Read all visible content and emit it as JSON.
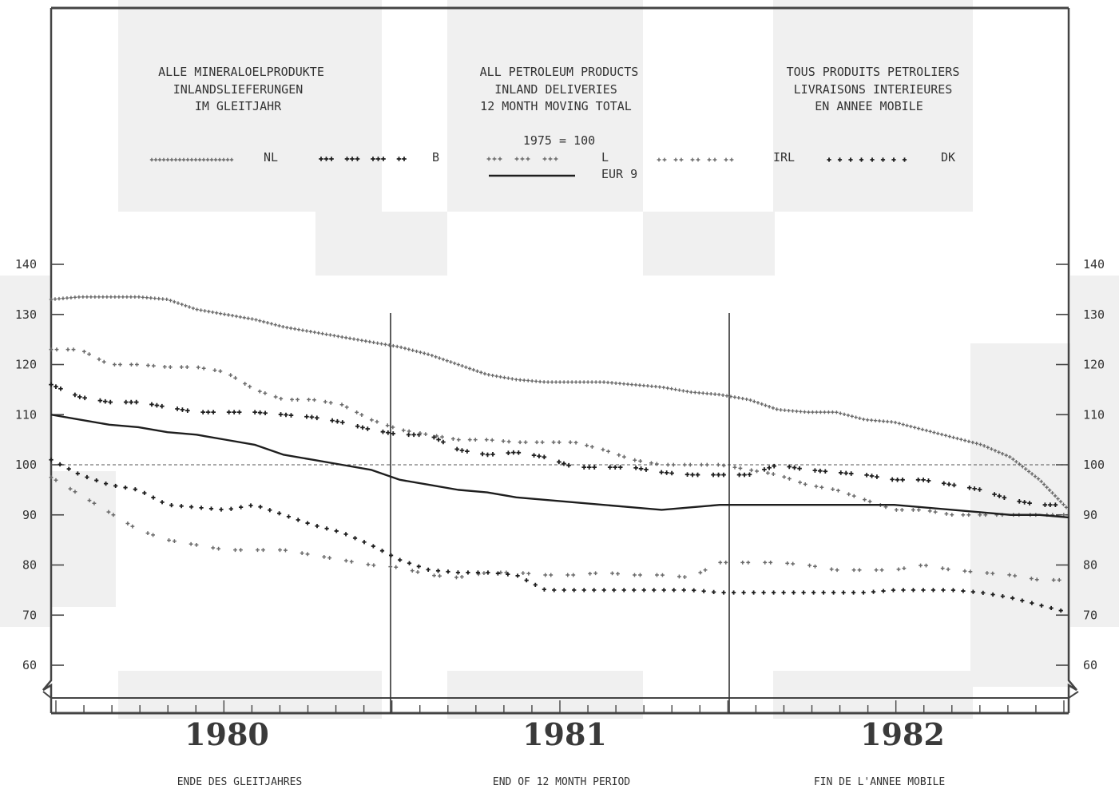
{
  "chart_data": {
    "type": "line",
    "title_de": [
      "ALLE MINERALOELPRODUKTE",
      "INLANDSLIEFERUNGEN",
      "IM GLEITJAHR"
    ],
    "title_en": [
      "ALL PETROLEUM PRODUCTS",
      "INLAND DELIVERIES",
      "12 MONTH MOVING TOTAL"
    ],
    "title_fr": [
      "TOUS PRODUITS PETROLIERS",
      "LIVRAISONS INTERIEURES",
      "EN ANNEE MOBILE"
    ],
    "base_note": "1975 = 100",
    "xlabel_de": "ENDE DES GLEITJAHRES",
    "xlabel_en": "END OF 12 MONTH PERIOD",
    "xlabel_fr": "FIN DE L'ANNEE MOBILE",
    "year_labels": [
      "1980",
      "1981",
      "1982"
    ],
    "x_range": [
      "1980-01",
      "1982-12"
    ],
    "ylim": [
      60,
      140
    ],
    "yticks": [
      60,
      70,
      80,
      90,
      100,
      110,
      120,
      130,
      140
    ],
    "yticks_labels": [
      "60",
      "70",
      "80",
      "90",
      "100",
      "110",
      "120",
      "130",
      "140"
    ],
    "reference_line": 100,
    "x_monthly": [
      "1980-01",
      "1980-02",
      "1980-03",
      "1980-04",
      "1980-05",
      "1980-06",
      "1980-07",
      "1980-08",
      "1980-09",
      "1980-10",
      "1980-11",
      "1980-12",
      "1981-01",
      "1981-02",
      "1981-03",
      "1981-04",
      "1981-05",
      "1981-06",
      "1981-07",
      "1981-08",
      "1981-09",
      "1981-10",
      "1981-11",
      "1981-12",
      "1982-01",
      "1982-02",
      "1982-03",
      "1982-04",
      "1982-05",
      "1982-06",
      "1982-07",
      "1982-08",
      "1982-09",
      "1982-10",
      "1982-11",
      "1982-12"
    ],
    "series": [
      {
        "name": "NL",
        "style": "dense-plus",
        "values": [
          133,
          133.5,
          133.5,
          133.5,
          133,
          131,
          130,
          129,
          127.5,
          126.5,
          125.5,
          124.5,
          123.5,
          122,
          120,
          118,
          117,
          116.5,
          116.5,
          116.5,
          116,
          115.5,
          114.5,
          114,
          113,
          111,
          110.5,
          110.5,
          109,
          108.5,
          107,
          105.5,
          104,
          101.5,
          97,
          91
        ]
      },
      {
        "name": "B",
        "style": "triple-plus",
        "values": [
          116,
          113.5,
          112.5,
          112.5,
          111.5,
          110.5,
          110.5,
          110.5,
          110,
          109.5,
          108.5,
          107,
          106,
          106,
          103,
          102,
          102.5,
          101.5,
          99.5,
          99.5,
          99.5,
          98.5,
          98,
          98,
          98,
          100,
          99,
          98.5,
          98,
          97,
          97,
          96,
          95,
          93,
          92,
          92
        ]
      },
      {
        "name": "L",
        "style": "dash-plus",
        "values": [
          123,
          123,
          120,
          120,
          119.5,
          119.5,
          118.5,
          115,
          113,
          113,
          112,
          109,
          107,
          106,
          105,
          105,
          104.5,
          104.5,
          104.5,
          103,
          101,
          100,
          100,
          100,
          99,
          98,
          96,
          95,
          93,
          91,
          91,
          90,
          90,
          90,
          90,
          90
        ]
      },
      {
        "name": "IRL",
        "style": "sparse-plus",
        "values": [
          97.5,
          94,
          90.5,
          87,
          85,
          84,
          83,
          83,
          83,
          82,
          81,
          80,
          79.5,
          78,
          77.5,
          78.5,
          78.5,
          78,
          78,
          78.5,
          78,
          78,
          77.5,
          80.5,
          80.5,
          80.5,
          80,
          79,
          79,
          79,
          80,
          79,
          78.5,
          78,
          77,
          77
        ]
      },
      {
        "name": "DK",
        "style": "dot-plus",
        "values": [
          101,
          98,
          96,
          95,
          92,
          91.5,
          91,
          92,
          90,
          88,
          86.5,
          84,
          81,
          79,
          78.5,
          78.5,
          78,
          75,
          75,
          75,
          75,
          75,
          75,
          74.5,
          74.5,
          74.5,
          74.5,
          74.5,
          74.5,
          75,
          75,
          75,
          74.5,
          73.5,
          72,
          70.5
        ]
      },
      {
        "name": "EUR 9",
        "style": "solid",
        "values": [
          110,
          109,
          108,
          107.5,
          106.5,
          106,
          105,
          104,
          102,
          101,
          100,
          99,
          97,
          96,
          95,
          94.5,
          93.5,
          93,
          92.5,
          92,
          91.5,
          91,
          91.5,
          92,
          92,
          92,
          92,
          92,
          92,
          92,
          91.5,
          91,
          90.5,
          90,
          90,
          89.5
        ]
      }
    ],
    "legend_labels": [
      "NL",
      "B",
      "L",
      "IRL",
      "DK",
      "EUR 9"
    ],
    "legend_placement": "top",
    "colors": {
      "ink": "#1e1e1e",
      "light_ink": "#6a6a6a",
      "bg_tint": "#f0f0f0"
    }
  }
}
